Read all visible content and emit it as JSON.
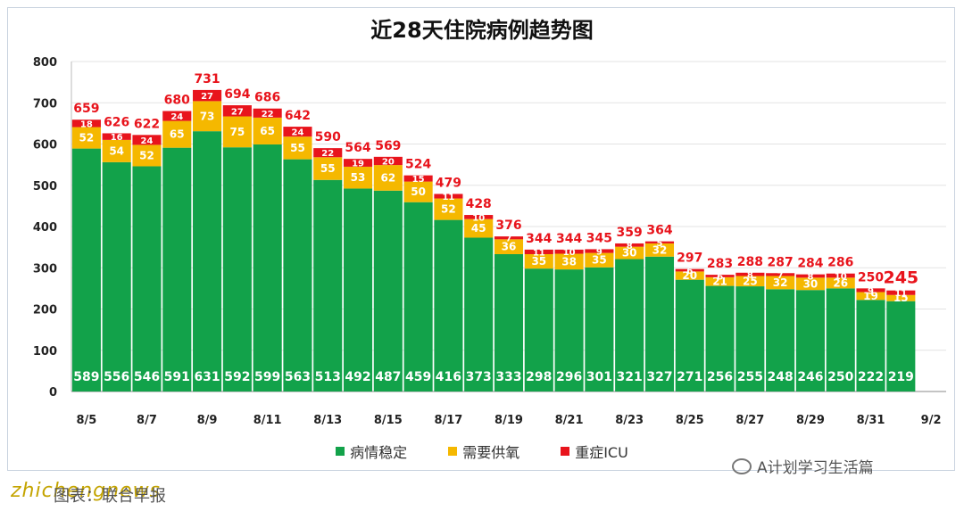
{
  "chart_data": {
    "type": "bar",
    "stacked": true,
    "title": "近28天住院病例趋势图",
    "x": [
      "8/5",
      "8/6",
      "8/7",
      "8/8",
      "8/9",
      "8/10",
      "8/11",
      "8/12",
      "8/13",
      "8/14",
      "8/15",
      "8/16",
      "8/17",
      "8/18",
      "8/19",
      "8/20",
      "8/21",
      "8/22",
      "8/23",
      "8/24",
      "8/25",
      "8/26",
      "8/27",
      "8/28",
      "8/29",
      "8/30",
      "8/31",
      "9/1",
      "9/2"
    ],
    "xtick_labels": [
      "8/5",
      "8/7",
      "8/9",
      "8/11",
      "8/13",
      "8/15",
      "8/17",
      "8/19",
      "8/21",
      "8/23",
      "8/25",
      "8/27",
      "8/29",
      "8/31",
      "9/2"
    ],
    "ylim": [
      0,
      800
    ],
    "yticks": [
      0,
      100,
      200,
      300,
      400,
      500,
      600,
      700,
      800
    ],
    "grid": true,
    "legend_position": "bottom",
    "series": [
      {
        "name": "病情稳定",
        "color": "#12a24a",
        "label_color": "#ffffff",
        "values": [
          589,
          556,
          546,
          591,
          631,
          592,
          599,
          563,
          513,
          492,
          487,
          459,
          416,
          373,
          333,
          298,
          296,
          301,
          321,
          327,
          271,
          256,
          255,
          248,
          246,
          250,
          222,
          219,
          null
        ]
      },
      {
        "name": "需要供氧",
        "color": "#f5b800",
        "label_color": "#ffffff",
        "values": [
          52,
          54,
          52,
          65,
          73,
          75,
          65,
          55,
          55,
          53,
          62,
          50,
          52,
          45,
          36,
          35,
          38,
          35,
          30,
          32,
          20,
          21,
          25,
          32,
          30,
          26,
          19,
          15,
          null
        ]
      },
      {
        "name": "重症ICU",
        "color": "#e8141c",
        "label_color": "#ffffff",
        "values": [
          18,
          16,
          24,
          24,
          27,
          27,
          22,
          24,
          22,
          19,
          20,
          15,
          11,
          10,
          7,
          11,
          10,
          9,
          8,
          5,
          6,
          6,
          8,
          7,
          8,
          10,
          9,
          11,
          null
        ]
      }
    ],
    "totals": [
      659,
      626,
      622,
      680,
      731,
      694,
      686,
      642,
      590,
      564,
      569,
      524,
      479,
      428,
      376,
      344,
      344,
      345,
      359,
      364,
      297,
      283,
      288,
      287,
      284,
      286,
      250,
      245,
      null
    ],
    "total_color": "#e8141c"
  },
  "watermark_text": "A计划学习生活篇",
  "site_text": "zhichengnews",
  "source_text": "图表：联合早报"
}
